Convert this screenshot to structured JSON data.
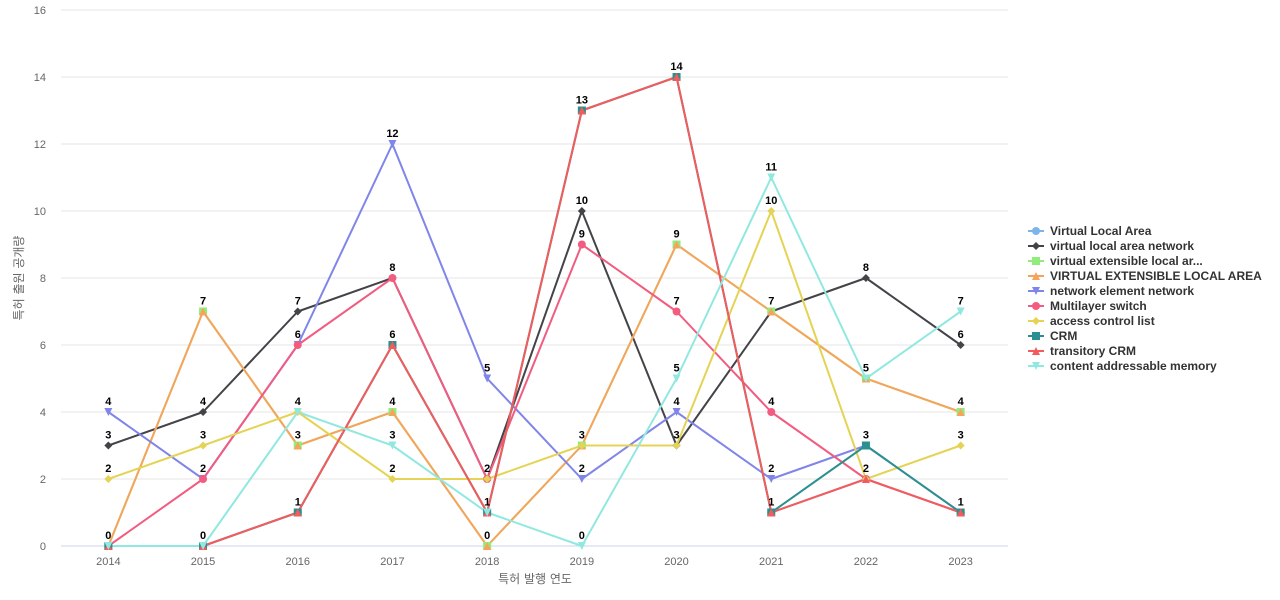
{
  "chart_data": {
    "type": "line",
    "title": "",
    "xlabel": "특허 발행 연도",
    "ylabel": "특허 출원 공개량",
    "x": [
      "2014",
      "2015",
      "2016",
      "2017",
      "2018",
      "2019",
      "2020",
      "2021",
      "2022",
      "2023"
    ],
    "ylim": [
      0,
      16
    ],
    "yticks": [
      0,
      2,
      4,
      6,
      8,
      10,
      12,
      14,
      16
    ],
    "grid": true,
    "legend_position": "right",
    "series": [
      {
        "name": "Virtual Local Area",
        "color": "#7cb5ec",
        "marker": "circle",
        "values": [
          0,
          0,
          1,
          6,
          1,
          13,
          14,
          1,
          2,
          1
        ]
      },
      {
        "name": "virtual local area network",
        "color": "#434348",
        "marker": "diamond",
        "values": [
          3,
          4,
          7,
          8,
          2,
          10,
          3,
          7,
          8,
          6
        ]
      },
      {
        "name": "virtual extensible local ar...",
        "color": "#90ed7d",
        "marker": "square",
        "values": [
          0,
          7,
          3,
          4,
          0,
          3,
          9,
          7,
          5,
          4
        ]
      },
      {
        "name": "VIRTUAL EXTENSIBLE LOCAL AREA",
        "color": "#f7a35c",
        "marker": "triangle",
        "values": [
          0,
          7,
          3,
          4,
          0,
          3,
          9,
          7,
          5,
          4
        ]
      },
      {
        "name": "network element network",
        "color": "#8085e9",
        "marker": "triangle-down",
        "values": [
          4,
          2,
          6,
          12,
          5,
          2,
          4,
          2,
          3,
          1
        ]
      },
      {
        "name": "Multilayer switch",
        "color": "#f15c80",
        "marker": "circle",
        "values": [
          0,
          2,
          6,
          8,
          2,
          9,
          7,
          4,
          2,
          1
        ]
      },
      {
        "name": "access control list",
        "color": "#e4d354",
        "marker": "diamond",
        "values": [
          2,
          3,
          4,
          2,
          2,
          3,
          3,
          10,
          2,
          3
        ]
      },
      {
        "name": "CRM",
        "color": "#2b908f",
        "marker": "square",
        "values": [
          0,
          0,
          1,
          6,
          1,
          13,
          14,
          1,
          3,
          1
        ]
      },
      {
        "name": "transitory CRM",
        "color": "#f45b5b",
        "marker": "triangle",
        "values": [
          0,
          0,
          1,
          6,
          1,
          13,
          14,
          1,
          2,
          1
        ]
      },
      {
        "name": "content addressable memory",
        "color": "#91e8e1",
        "marker": "triangle-down",
        "values": [
          0,
          0,
          4,
          3,
          1,
          0,
          5,
          11,
          5,
          7
        ]
      }
    ],
    "data_labels": [
      {
        "x": "2014",
        "y": 4,
        "text": "4"
      },
      {
        "x": "2014",
        "y": 3,
        "text": "3"
      },
      {
        "x": "2014",
        "y": 2,
        "text": "2"
      },
      {
        "x": "2014",
        "y": 0,
        "text": "0"
      },
      {
        "x": "2015",
        "y": 7,
        "text": "7"
      },
      {
        "x": "2015",
        "y": 4,
        "text": "4"
      },
      {
        "x": "2015",
        "y": 3,
        "text": "3"
      },
      {
        "x": "2015",
        "y": 2,
        "text": "2"
      },
      {
        "x": "2015",
        "y": 0,
        "text": "0"
      },
      {
        "x": "2016",
        "y": 7,
        "text": "7"
      },
      {
        "x": "2016",
        "y": 6,
        "text": "6"
      },
      {
        "x": "2016",
        "y": 4,
        "text": "4"
      },
      {
        "x": "2016",
        "y": 3,
        "text": "3"
      },
      {
        "x": "2016",
        "y": 1,
        "text": "1"
      },
      {
        "x": "2017",
        "y": 12,
        "text": "12"
      },
      {
        "x": "2017",
        "y": 8,
        "text": "8"
      },
      {
        "x": "2017",
        "y": 6,
        "text": "6"
      },
      {
        "x": "2017",
        "y": 4,
        "text": "4"
      },
      {
        "x": "2017",
        "y": 3,
        "text": "3"
      },
      {
        "x": "2017",
        "y": 2,
        "text": "2"
      },
      {
        "x": "2018",
        "y": 5,
        "text": "5"
      },
      {
        "x": "2018",
        "y": 2,
        "text": "2"
      },
      {
        "x": "2018",
        "y": 1,
        "text": "1"
      },
      {
        "x": "2018",
        "y": 0,
        "text": "0"
      },
      {
        "x": "2019",
        "y": 13,
        "text": "13"
      },
      {
        "x": "2019",
        "y": 10,
        "text": "10"
      },
      {
        "x": "2019",
        "y": 9,
        "text": "9"
      },
      {
        "x": "2019",
        "y": 3,
        "text": "3"
      },
      {
        "x": "2019",
        "y": 2,
        "text": "2"
      },
      {
        "x": "2019",
        "y": 0,
        "text": "0"
      },
      {
        "x": "2020",
        "y": 14,
        "text": "14"
      },
      {
        "x": "2020",
        "y": 9,
        "text": "9"
      },
      {
        "x": "2020",
        "y": 7,
        "text": "7"
      },
      {
        "x": "2020",
        "y": 5,
        "text": "5"
      },
      {
        "x": "2020",
        "y": 4,
        "text": "4"
      },
      {
        "x": "2020",
        "y": 3,
        "text": "3"
      },
      {
        "x": "2021",
        "y": 11,
        "text": "11"
      },
      {
        "x": "2021",
        "y": 10,
        "text": "10"
      },
      {
        "x": "2021",
        "y": 7,
        "text": "7"
      },
      {
        "x": "2021",
        "y": 4,
        "text": "4"
      },
      {
        "x": "2021",
        "y": 2,
        "text": "2"
      },
      {
        "x": "2021",
        "y": 1,
        "text": "1"
      },
      {
        "x": "2022",
        "y": 8,
        "text": "8"
      },
      {
        "x": "2022",
        "y": 5,
        "text": "5"
      },
      {
        "x": "2022",
        "y": 3,
        "text": "3"
      },
      {
        "x": "2022",
        "y": 2,
        "text": "2"
      },
      {
        "x": "2023",
        "y": 7,
        "text": "7"
      },
      {
        "x": "2023",
        "y": 6,
        "text": "6"
      },
      {
        "x": "2023",
        "y": 4,
        "text": "4"
      },
      {
        "x": "2023",
        "y": 3,
        "text": "3"
      },
      {
        "x": "2023",
        "y": 1,
        "text": "1"
      }
    ]
  }
}
